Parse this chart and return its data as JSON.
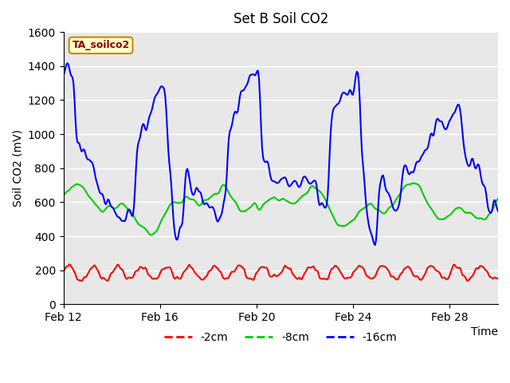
{
  "title": "Set B Soil CO2",
  "xlabel": "Time",
  "ylabel": "Soil CO2 (mV)",
  "ylim": [
    0,
    1600
  ],
  "background_color": "#e8e8e8",
  "figure_color": "#ffffff",
  "label_box_text": "TA_soilco2",
  "label_box_bg": "#ffffcc",
  "label_box_edge": "#cc8800",
  "lines": [
    {
      "label": "-2cm",
      "color": "#ff0000",
      "lw": 1.5
    },
    {
      "label": "-8cm",
      "color": "#00cc00",
      "lw": 1.5
    },
    {
      "label": "-16cm",
      "color": "#0000ff",
      "lw": 1.5
    }
  ],
  "xtick_labels": [
    "Feb 12",
    "Feb 16",
    "Feb 20",
    "Feb 24",
    "Feb 28"
  ],
  "xtick_positions": [
    0,
    4,
    8,
    12,
    16
  ],
  "n_days": 18,
  "n_points": 432
}
